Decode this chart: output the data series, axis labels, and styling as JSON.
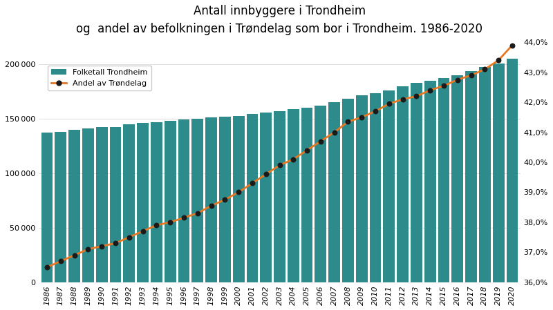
{
  "years": [
    1986,
    1987,
    1988,
    1989,
    1990,
    1991,
    1992,
    1993,
    1994,
    1995,
    1996,
    1997,
    1998,
    1999,
    2000,
    2001,
    2002,
    2003,
    2004,
    2005,
    2006,
    2007,
    2008,
    2009,
    2010,
    2011,
    2012,
    2013,
    2014,
    2015,
    2016,
    2017,
    2018,
    2019,
    2020
  ],
  "population": [
    137000,
    138000,
    139500,
    141000,
    142000,
    142500,
    144500,
    146000,
    147000,
    148000,
    149000,
    150000,
    151000,
    151500,
    152500,
    154000,
    155500,
    157000,
    158500,
    160000,
    162000,
    165000,
    168000,
    171500,
    173500,
    176000,
    179500,
    183000,
    185000,
    187500,
    190000,
    193500,
    197500,
    200500,
    205000
  ],
  "pct_trondelag": [
    36.5,
    36.7,
    36.9,
    37.1,
    37.2,
    37.3,
    37.5,
    37.7,
    37.9,
    38.0,
    38.15,
    38.3,
    38.55,
    38.75,
    39.0,
    39.3,
    39.6,
    39.9,
    40.1,
    40.4,
    40.7,
    41.0,
    41.35,
    41.5,
    41.7,
    41.95,
    42.1,
    42.2,
    42.4,
    42.55,
    42.75,
    42.9,
    43.1,
    43.4,
    43.9
  ],
  "bar_color": "#2E8B8B",
  "line_color": "#E87722",
  "dot_color": "#1a1a1a",
  "title_line1": "Antall innbyggere i Trondheim",
  "title_line2": "og  andel av befolkningen i Trøndelag som bor i Trondheim. 1986-2020",
  "legend_bar": "Folketall Trondheim",
  "legend_line": "Andel av Trøndelag",
  "ylim_left": [
    0,
    220000
  ],
  "ylim_right": [
    36.0,
    44.0
  ],
  "yticks_left": [
    0,
    50000,
    100000,
    150000,
    200000
  ],
  "yticks_right": [
    36.0,
    37.0,
    38.0,
    39.0,
    40.0,
    41.0,
    42.0,
    43.0,
    44.0
  ],
  "background_color": "#ffffff",
  "grid_color": "#d0d0d0"
}
